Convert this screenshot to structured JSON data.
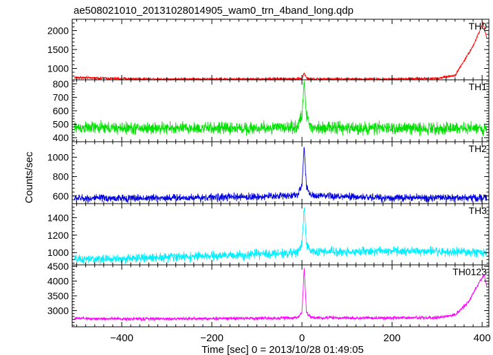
{
  "chart_data": {
    "type": "line",
    "title": "ae508021010_20131028014905_wam0_trn_4band_long.qdp",
    "xlabel": "Time [sec] 0 = 2013/10/28 01:49:05",
    "ylabel": "Counts/sec",
    "xlim": [
      -510,
      415
    ],
    "x_ticks": [
      -400,
      -200,
      0,
      200,
      400
    ],
    "grid": false,
    "panels": [
      {
        "name": "TH0",
        "color": "#ff0000",
        "ylim": [
          700,
          2300
        ],
        "y_ticks": [
          1000,
          1500,
          2000
        ],
        "noise": 30,
        "curve_steps": 10,
        "x": [
          -500,
          -400,
          -300,
          -200,
          -100,
          0,
          5,
          10,
          20,
          100,
          200,
          300,
          340,
          360,
          380,
          395,
          402,
          410
        ],
        "y": [
          760,
          730,
          720,
          720,
          720,
          730,
          880,
          740,
          720,
          720,
          720,
          740,
          820,
          1200,
          1600,
          2000,
          2200,
          1800
        ]
      },
      {
        "name": "TH1",
        "color": "#00e000",
        "ylim": [
          370,
          830
        ],
        "y_ticks": [
          400,
          500,
          600,
          700,
          800
        ],
        "noise": 40,
        "curve_steps": 10,
        "x": [
          -500,
          -400,
          -300,
          -200,
          -100,
          -10,
          0,
          5,
          10,
          20,
          100,
          200,
          300,
          400,
          410
        ],
        "y": [
          475,
          470,
          470,
          470,
          470,
          480,
          560,
          820,
          560,
          480,
          470,
          470,
          470,
          470,
          470
        ]
      },
      {
        "name": "TH2",
        "color": "#0000e0",
        "ylim": [
          520,
          1160
        ],
        "y_ticks": [
          600,
          800,
          1000
        ],
        "noise": 35,
        "curve_steps": 10,
        "x": [
          -500,
          -400,
          -300,
          -200,
          -100,
          -10,
          0,
          5,
          10,
          20,
          100,
          200,
          300,
          400,
          410
        ],
        "y": [
          575,
          575,
          580,
          585,
          590,
          610,
          700,
          1120,
          700,
          600,
          590,
          580,
          580,
          580,
          580
        ]
      },
      {
        "name": "TH3",
        "color": "#00f0ff",
        "ylim": [
          860,
          1560
        ],
        "y_ticks": [
          1000,
          1200,
          1400
        ],
        "noise": 45,
        "curve_steps": 10,
        "x": [
          -500,
          -400,
          -300,
          -200,
          -100,
          -10,
          0,
          5,
          10,
          20,
          100,
          200,
          300,
          400,
          410
        ],
        "y": [
          920,
          930,
          950,
          960,
          980,
          1000,
          1100,
          1540,
          1100,
          1010,
          1010,
          1020,
          1010,
          1000,
          1000
        ]
      },
      {
        "name": "TH0123",
        "color": "#ff00ff",
        "ylim": [
          2450,
          4550
        ],
        "y_ticks": [
          3000,
          3500,
          4000,
          4500
        ],
        "noise": 50,
        "curve_steps": 10,
        "x": [
          -500,
          -400,
          -300,
          -200,
          -100,
          -10,
          0,
          5,
          10,
          20,
          100,
          200,
          300,
          340,
          370,
          395,
          405,
          410
        ],
        "y": [
          2730,
          2720,
          2720,
          2730,
          2740,
          2750,
          2950,
          4450,
          2950,
          2760,
          2750,
          2750,
          2760,
          2850,
          3300,
          4000,
          4200,
          3800
        ]
      }
    ]
  }
}
